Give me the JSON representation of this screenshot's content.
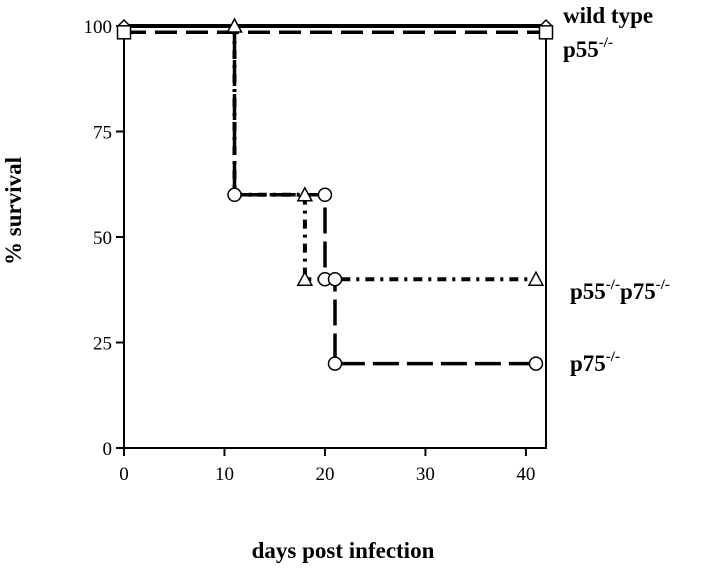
{
  "chart_data": {
    "type": "line",
    "step": true,
    "title": "",
    "xlabel": "days post infection",
    "ylabel": "% survival",
    "xlim": [
      0,
      42
    ],
    "ylim": [
      0,
      100
    ],
    "xticks": [
      0,
      10,
      20,
      30,
      40
    ],
    "yticks": [
      0,
      25,
      50,
      75,
      100
    ],
    "grid": false,
    "legend_position": "right, next to line ends",
    "series": [
      {
        "name": "wild type",
        "label_base": "wild type",
        "label_sup": "",
        "line_style": "solid",
        "marker": "diamond",
        "x": [
          0,
          42
        ],
        "y": [
          100,
          100
        ],
        "markers": [
          [
            0,
            100
          ],
          [
            42,
            100
          ]
        ]
      },
      {
        "name": "p55-/-",
        "label_base": "p55",
        "label_sup": "-/-",
        "line_style": "dashed",
        "marker": "square",
        "x": [
          0,
          42
        ],
        "y": [
          98.5,
          98.5
        ],
        "markers": [
          [
            0,
            98.5
          ],
          [
            42,
            98.5
          ]
        ]
      },
      {
        "name": "p55-/-p75-/-",
        "label_base": "p55",
        "label_sup": "-/-",
        "label_base2": "p75",
        "label_sup2": "-/-",
        "line_style": "dashdot",
        "marker": "triangle",
        "x": [
          11,
          11,
          18,
          18,
          41
        ],
        "y": [
          100,
          60,
          60,
          40,
          40
        ],
        "markers": [
          [
            11,
            100
          ],
          [
            18,
            60
          ],
          [
            18,
            40
          ],
          [
            41,
            40
          ]
        ]
      },
      {
        "name": "p75-/-",
        "label_base": "p75",
        "label_sup": "-/-",
        "line_style": "longdash",
        "marker": "circle",
        "x": [
          11,
          11,
          20,
          20,
          21,
          21,
          41
        ],
        "y": [
          100,
          60,
          60,
          40,
          40,
          20,
          20
        ],
        "markers": [
          [
            11,
            60
          ],
          [
            20,
            60
          ],
          [
            20,
            40
          ],
          [
            21,
            40
          ],
          [
            21,
            20
          ],
          [
            41,
            20
          ]
        ]
      }
    ]
  }
}
